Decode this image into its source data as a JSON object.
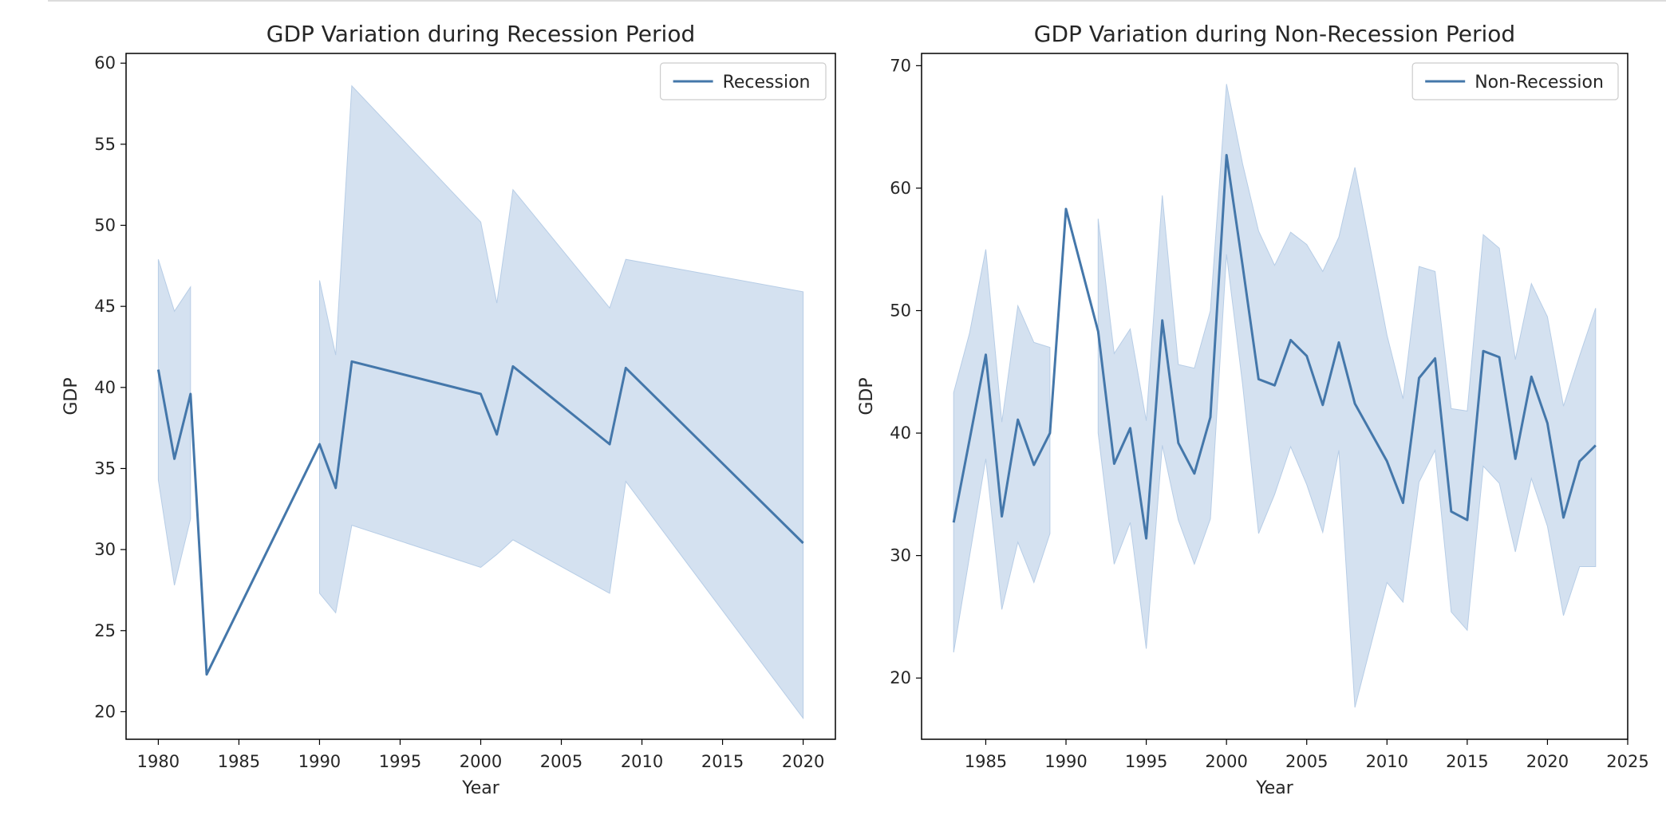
{
  "chart_data": [
    {
      "type": "line",
      "title": "GDP Variation during Recession Period",
      "xlabel": "Year",
      "ylabel": "GDP",
      "xlim": [
        1978,
        2022
      ],
      "ylim": [
        18.3,
        60.6
      ],
      "xticks": [
        1980,
        1985,
        1990,
        1995,
        2000,
        2005,
        2010,
        2015,
        2020
      ],
      "yticks": [
        20,
        25,
        30,
        35,
        40,
        45,
        50,
        55,
        60
      ],
      "legend": {
        "position": "top-right",
        "entries": [
          "Recession"
        ]
      },
      "grid": false,
      "colors": {
        "line": "#4477aa",
        "band": "#b7cde6"
      },
      "series": [
        {
          "name": "Recession",
          "x": [
            1980,
            1981,
            1982,
            1983,
            1990,
            1991,
            1992,
            2000,
            2001,
            2002,
            2008,
            2009,
            2020
          ],
          "y": [
            41.1,
            35.6,
            39.6,
            22.3,
            36.5,
            33.8,
            41.6,
            39.6,
            37.1,
            41.3,
            36.5,
            41.2,
            30.4
          ]
        }
      ],
      "bands": [
        {
          "x": [
            1980,
            1981,
            1982
          ],
          "upper": [
            47.9,
            44.7,
            46.2
          ],
          "lower": [
            34.3,
            27.8,
            31.9
          ]
        },
        {
          "x": [
            1990,
            1991,
            1992,
            2000,
            2001,
            2002,
            2008,
            2009,
            2020
          ],
          "upper": [
            46.6,
            42.0,
            58.6,
            50.2,
            45.2,
            52.2,
            44.9,
            47.9,
            45.9
          ],
          "lower": [
            27.3,
            26.1,
            31.5,
            28.9,
            29.7,
            30.6,
            27.3,
            34.2,
            19.6
          ]
        }
      ]
    },
    {
      "type": "line",
      "title": "GDP Variation during Non-Recession Period",
      "xlabel": "Year",
      "ylabel": "GDP",
      "xlim": [
        1981,
        2025
      ],
      "ylim": [
        15,
        71
      ],
      "xticks": [
        1985,
        1990,
        1995,
        2000,
        2005,
        2010,
        2015,
        2020,
        2025
      ],
      "yticks": [
        20,
        30,
        40,
        50,
        60,
        70
      ],
      "legend": {
        "position": "top-right",
        "entries": [
          "Non-Recession"
        ]
      },
      "grid": false,
      "colors": {
        "line": "#4477aa",
        "band": "#b7cde6"
      },
      "series": [
        {
          "name": "Non-Recession",
          "x": [
            1983,
            1984,
            1985,
            1986,
            1987,
            1988,
            1989,
            1990,
            1992,
            1993,
            1994,
            1995,
            1996,
            1997,
            1998,
            1999,
            2000,
            2001,
            2002,
            2003,
            2004,
            2005,
            2006,
            2007,
            2008,
            2010,
            2011,
            2012,
            2013,
            2014,
            2015,
            2016,
            2017,
            2018,
            2019,
            2020,
            2021,
            2022,
            2023
          ],
          "y": [
            32.7,
            39.5,
            46.4,
            33.2,
            41.1,
            37.4,
            40.0,
            58.3,
            48.3,
            37.5,
            40.4,
            31.4,
            49.2,
            39.2,
            36.7,
            41.3,
            62.7,
            53.7,
            44.4,
            43.9,
            47.6,
            46.3,
            42.3,
            47.4,
            42.4,
            37.7,
            34.3,
            44.5,
            46.1,
            33.6,
            32.9,
            46.7,
            46.2,
            37.9,
            44.6,
            40.8,
            33.1,
            37.7,
            39.0
          ]
        }
      ],
      "bands": [
        {
          "x": [
            1983,
            1984,
            1985,
            1986,
            1987,
            1988,
            1989
          ],
          "upper": [
            43.3,
            48.2,
            55.0,
            40.9,
            50.4,
            47.4,
            47.0
          ],
          "lower": [
            22.1,
            30.0,
            37.9,
            25.6,
            31.1,
            27.8,
            31.8
          ]
        },
        {
          "x": [
            1992,
            1993,
            1994,
            1995,
            1996,
            1997,
            1998,
            1999,
            2000,
            2001,
            2002,
            2003,
            2004,
            2005,
            2006,
            2007,
            2008,
            2010,
            2011,
            2012,
            2013,
            2014,
            2015,
            2016,
            2017,
            2018,
            2019,
            2020,
            2021,
            2022,
            2023
          ],
          "upper": [
            57.5,
            46.5,
            48.5,
            41.0,
            59.4,
            45.6,
            45.3,
            50.0,
            68.5,
            62.0,
            56.5,
            53.7,
            56.4,
            55.4,
            53.2,
            56.0,
            61.7,
            48.0,
            42.8,
            53.6,
            53.2,
            42.0,
            41.8,
            56.2,
            55.1,
            46.0,
            52.2,
            49.5,
            42.2,
            46.3,
            50.2
          ],
          "lower": [
            40.0,
            29.3,
            32.7,
            22.4,
            39.0,
            32.9,
            29.3,
            33.0,
            54.6,
            44.0,
            31.8,
            35.0,
            38.9,
            35.8,
            31.9,
            38.6,
            17.6,
            27.8,
            26.2,
            36.0,
            38.6,
            25.4,
            23.9,
            37.3,
            35.9,
            30.3,
            36.3,
            32.4,
            25.1,
            29.1,
            29.1
          ]
        }
      ]
    }
  ]
}
